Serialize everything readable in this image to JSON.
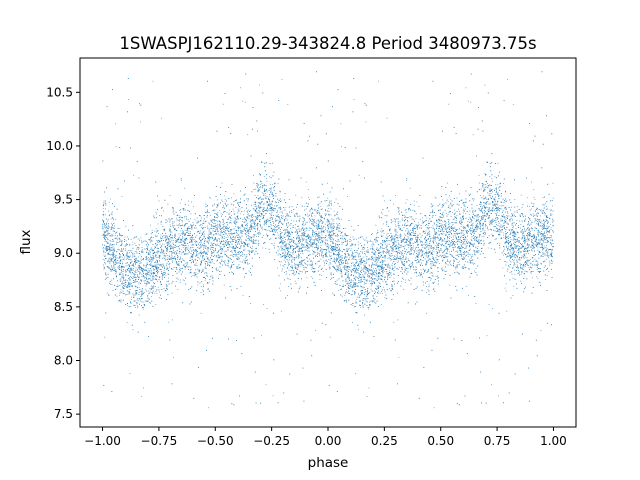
{
  "chart_data": {
    "type": "scatter",
    "title": "1SWASPJ162110.29-343824.8 Period 3480973.75s",
    "xlabel": "phase",
    "ylabel": "flux",
    "xlim": [
      -1.1,
      1.1
    ],
    "ylim": [
      7.38,
      10.82
    ],
    "x_ticks": [
      -1.0,
      -0.75,
      -0.5,
      -0.25,
      0.0,
      0.25,
      0.5,
      0.75,
      1.0
    ],
    "x_tick_labels": [
      "−1.00",
      "−0.75",
      "−0.50",
      "−0.25",
      "0.00",
      "0.25",
      "0.50",
      "0.75",
      "1.00"
    ],
    "y_ticks": [
      7.5,
      8.0,
      8.5,
      9.0,
      9.5,
      10.0,
      10.5
    ],
    "y_tick_labels": [
      "7.5",
      "8.0",
      "8.5",
      "9.0",
      "9.5",
      "10.0",
      "10.5"
    ],
    "grid": false,
    "legend": "none",
    "marker_color": "#1f77b4",
    "series": [
      {
        "profile_phase": [
          0.0,
          0.05,
          0.1,
          0.15,
          0.2,
          0.25,
          0.3,
          0.35,
          0.4,
          0.45,
          0.5,
          0.55,
          0.6,
          0.65,
          0.7,
          0.75,
          0.8,
          0.85,
          0.9,
          0.95,
          1.0
        ],
        "profile_flux": [
          9.15,
          9.0,
          8.85,
          8.8,
          8.85,
          8.95,
          9.05,
          9.1,
          9.05,
          9.05,
          9.1,
          9.15,
          9.15,
          9.2,
          9.45,
          9.4,
          9.1,
          9.05,
          9.1,
          9.15,
          9.15
        ],
        "scatter_sigma": 0.18,
        "flux_range": [
          7.55,
          10.7
        ],
        "points_per_cycle": 6500
      }
    ]
  }
}
